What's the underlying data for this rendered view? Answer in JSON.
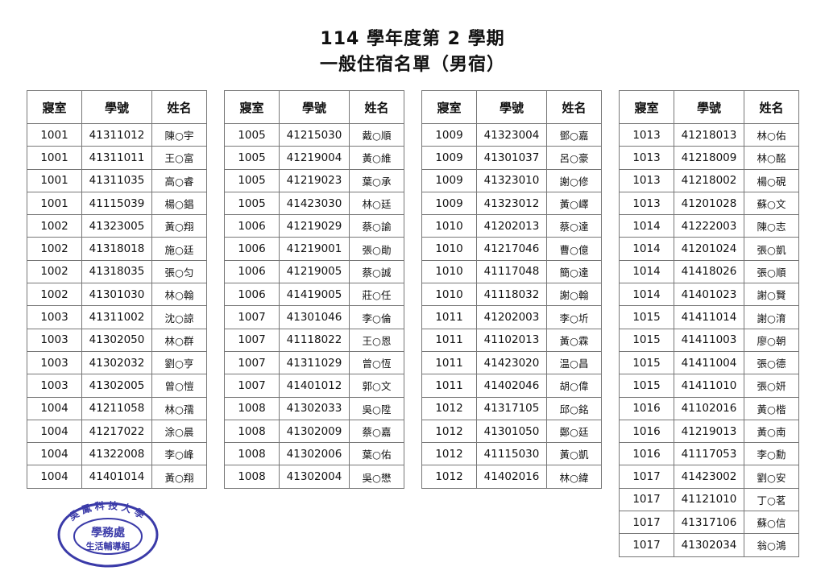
{
  "header": {
    "title": "114 學年度第 2 學期",
    "subtitle": "一般住宿名單（男宿）"
  },
  "columns": [
    "寢室",
    "學號",
    "姓名"
  ],
  "tables": [
    {
      "rows": [
        [
          "1001",
          "41311012",
          "陳○宇"
        ],
        [
          "1001",
          "41311011",
          "王○富"
        ],
        [
          "1001",
          "41311035",
          "高○睿"
        ],
        [
          "1001",
          "41115039",
          "楊○錩"
        ],
        [
          "1002",
          "41323005",
          "黃○翔"
        ],
        [
          "1002",
          "41318018",
          "施○廷"
        ],
        [
          "1002",
          "41318035",
          "張○匀"
        ],
        [
          "1002",
          "41301030",
          "林○翰"
        ],
        [
          "1003",
          "41311002",
          "沈○諒"
        ],
        [
          "1003",
          "41302050",
          "林○群"
        ],
        [
          "1003",
          "41302032",
          "劉○亨"
        ],
        [
          "1003",
          "41302005",
          "曾○愷"
        ],
        [
          "1004",
          "41211058",
          "林○孺"
        ],
        [
          "1004",
          "41217022",
          "涂○晨"
        ],
        [
          "1004",
          "41322008",
          "李○峰"
        ],
        [
          "1004",
          "41401014",
          "黃○翔"
        ]
      ]
    },
    {
      "rows": [
        [
          "1005",
          "41215030",
          "戴○順"
        ],
        [
          "1005",
          "41219004",
          "黃○維"
        ],
        [
          "1005",
          "41219023",
          "葉○承"
        ],
        [
          "1005",
          "41423030",
          "林○廷"
        ],
        [
          "1006",
          "41219029",
          "蔡○諭"
        ],
        [
          "1006",
          "41219001",
          "張○勛"
        ],
        [
          "1006",
          "41219005",
          "蔡○誠"
        ],
        [
          "1006",
          "41419005",
          "莊○任"
        ],
        [
          "1007",
          "41301046",
          "李○倫"
        ],
        [
          "1007",
          "41118022",
          "王○恩"
        ],
        [
          "1007",
          "41311029",
          "曾○恆"
        ],
        [
          "1007",
          "41401012",
          "郭○文"
        ],
        [
          "1008",
          "41302033",
          "吳○陞"
        ],
        [
          "1008",
          "41302009",
          "蔡○嘉"
        ],
        [
          "1008",
          "41302006",
          "葉○佑"
        ],
        [
          "1008",
          "41302004",
          "吳○懋"
        ]
      ]
    },
    {
      "rows": [
        [
          "1009",
          "41323004",
          "鄧○嘉"
        ],
        [
          "1009",
          "41301037",
          "呂○豪"
        ],
        [
          "1009",
          "41323010",
          "謝○修"
        ],
        [
          "1009",
          "41323012",
          "黃○嶧"
        ],
        [
          "1010",
          "41202013",
          "蔡○達"
        ],
        [
          "1010",
          "41217046",
          "曹○億"
        ],
        [
          "1010",
          "41117048",
          "簡○達"
        ],
        [
          "1010",
          "41118032",
          "謝○翰"
        ],
        [
          "1011",
          "41202003",
          "李○圻"
        ],
        [
          "1011",
          "41102013",
          "黃○霖"
        ],
        [
          "1011",
          "41423020",
          "温○昌"
        ],
        [
          "1011",
          "41402046",
          "胡○偉"
        ],
        [
          "1012",
          "41317105",
          "邱○銘"
        ],
        [
          "1012",
          "41301050",
          "鄭○廷"
        ],
        [
          "1012",
          "41115030",
          "黃○凱"
        ],
        [
          "1012",
          "41402016",
          "林○緯"
        ]
      ]
    },
    {
      "rows": [
        [
          "1013",
          "41218013",
          "林○佑"
        ],
        [
          "1013",
          "41218009",
          "林○酩"
        ],
        [
          "1013",
          "41218002",
          "楊○硯"
        ],
        [
          "1013",
          "41201028",
          "蘇○文"
        ],
        [
          "1014",
          "41222003",
          "陳○志"
        ],
        [
          "1014",
          "41201024",
          "張○凱"
        ],
        [
          "1014",
          "41418026",
          "張○順"
        ],
        [
          "1014",
          "41401023",
          "謝○賢"
        ],
        [
          "1015",
          "41411014",
          "謝○淯"
        ],
        [
          "1015",
          "41411003",
          "廖○朝"
        ],
        [
          "1015",
          "41411004",
          "張○德"
        ],
        [
          "1015",
          "41411010",
          "張○妍"
        ],
        [
          "1016",
          "41102016",
          "黃○楷"
        ],
        [
          "1016",
          "41219013",
          "黃○南"
        ],
        [
          "1016",
          "41117053",
          "李○勳"
        ],
        [
          "1017",
          "41423002",
          "劉○安"
        ],
        [
          "1017",
          "41121010",
          "丁○茗"
        ],
        [
          "1017",
          "41317106",
          "蘇○信"
        ],
        [
          "1017",
          "41302034",
          "翁○鴻"
        ]
      ]
    }
  ],
  "stamp": {
    "top": "吳鳳科技大學",
    "middle": "學務處",
    "bottom": "生活輔導組",
    "color": "#3a3aa8"
  }
}
